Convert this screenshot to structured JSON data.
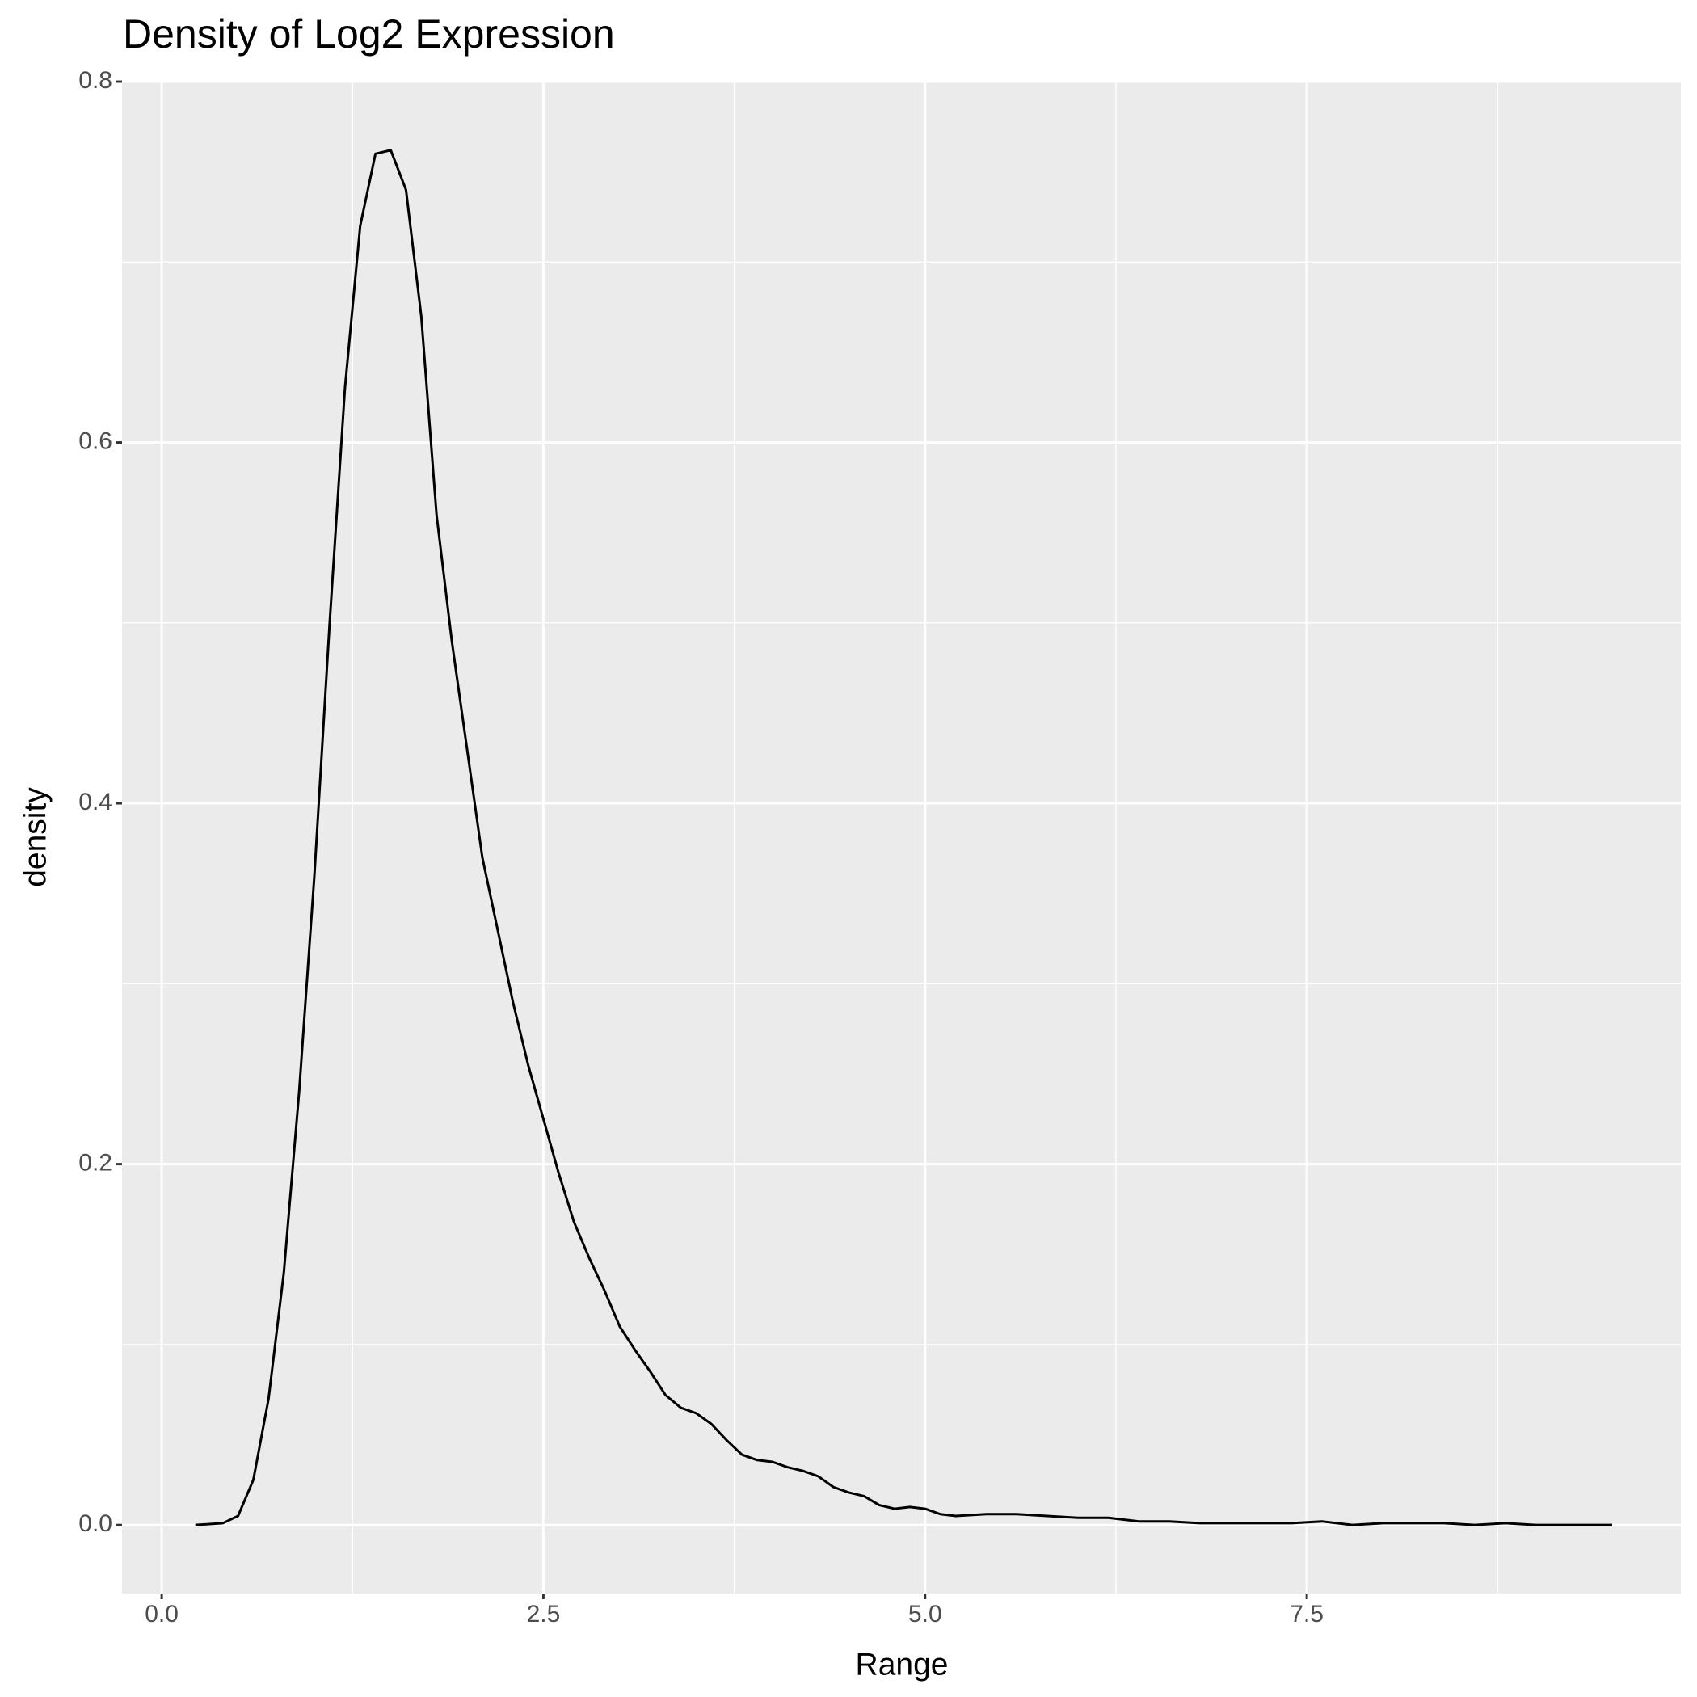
{
  "chart_data": {
    "type": "line",
    "title": "Density of Log2 Expression",
    "x_label": "Range",
    "y_label": "density",
    "x": [
      0.22,
      0.4,
      0.5,
      0.6,
      0.7,
      0.8,
      0.9,
      1.0,
      1.1,
      1.2,
      1.3,
      1.4,
      1.5,
      1.6,
      1.7,
      1.8,
      1.9,
      2.0,
      2.1,
      2.2,
      2.3,
      2.4,
      2.5,
      2.6,
      2.7,
      2.8,
      2.9,
      3.0,
      3.1,
      3.2,
      3.3,
      3.4,
      3.5,
      3.6,
      3.7,
      3.8,
      3.9,
      4.0,
      4.1,
      4.2,
      4.3,
      4.4,
      4.5,
      4.6,
      4.7,
      4.8,
      4.9,
      5.0,
      5.1,
      5.2,
      5.4,
      5.6,
      5.8,
      6.0,
      6.2,
      6.4,
      6.6,
      6.8,
      7.0,
      7.2,
      7.4,
      7.6,
      7.8,
      8.0,
      8.4,
      8.6,
      8.8,
      9.0,
      9.5
    ],
    "series": [
      {
        "color": "#000000",
        "values": [
          0,
          0.001,
          0.005,
          0.025,
          0.07,
          0.14,
          0.24,
          0.36,
          0.5,
          0.63,
          0.72,
          0.76,
          0.762,
          0.74,
          0.67,
          0.56,
          0.49,
          0.43,
          0.37,
          0.33,
          0.29,
          0.255,
          0.225,
          0.195,
          0.168,
          0.148,
          0.13,
          0.11,
          0.097,
          0.085,
          0.072,
          0.065,
          0.062,
          0.056,
          0.047,
          0.039,
          0.036,
          0.035,
          0.032,
          0.03,
          0.027,
          0.021,
          0.018,
          0.016,
          0.011,
          0.009,
          0.01,
          0.009,
          0.006,
          0.005,
          0.006,
          0.006,
          0.005,
          0.004,
          0.004,
          0.002,
          0.002,
          0.001,
          0.001,
          0.001,
          0.001,
          0.002,
          0,
          0.001,
          0.001,
          0,
          0.001,
          0,
          0
        ]
      }
    ],
    "xlim": [
      -0.26,
      9.95
    ],
    "ylim": [
      -0.038,
      0.8
    ],
    "xticks": [
      {
        "value": 0,
        "label": "0.0"
      },
      2.5,
      {
        "value": 5,
        "label": "5.0"
      },
      7.5
    ],
    "yticks": [
      {
        "value": 0,
        "label": "0.0"
      },
      0.2,
      0.4,
      0.6,
      0.8
    ],
    "xminor": [
      1.25,
      3.75,
      6.25,
      8.75
    ],
    "yminor": [
      0.1,
      0.3,
      0.5,
      0.7
    ],
    "grid": true
  }
}
